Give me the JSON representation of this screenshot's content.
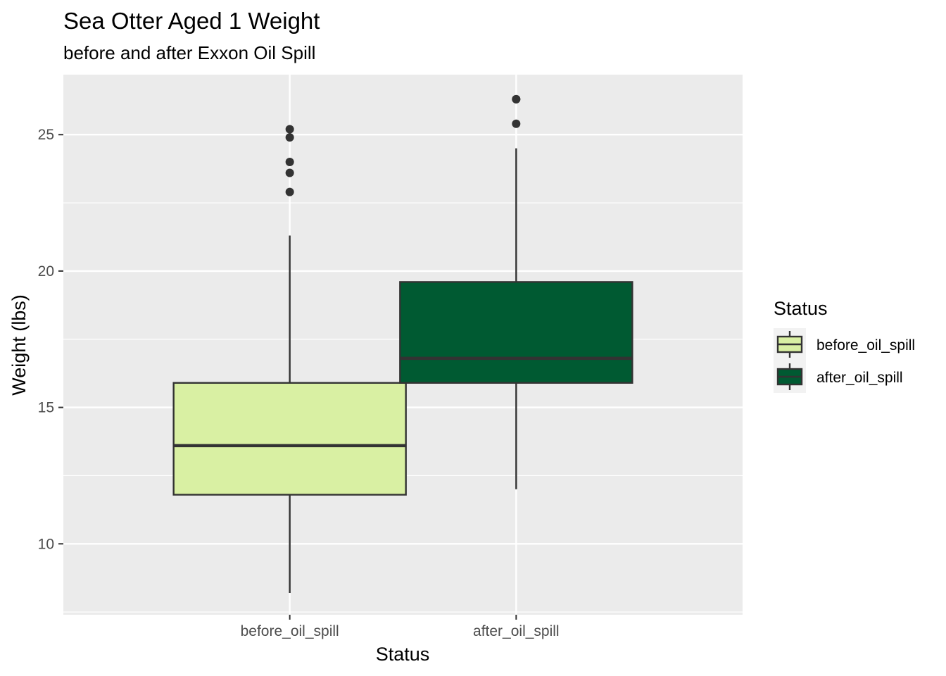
{
  "chart_data": {
    "type": "box",
    "title": "Sea Otter Aged 1 Weight",
    "subtitle": "before and after Exxon Oil Spill",
    "xlabel": "Status",
    "ylabel": "Weight (lbs)",
    "ylim": [
      7.4,
      27.2
    ],
    "yticks": [
      10,
      15,
      20,
      25
    ],
    "ytick_labels": [
      "10",
      "15",
      "20",
      "25"
    ],
    "categories": [
      "before_oil_spill",
      "after_oil_spill"
    ],
    "grid": true,
    "legend": {
      "title": "Status",
      "position": "right",
      "entries": [
        "before_oil_spill",
        "after_oil_spill"
      ]
    },
    "series": [
      {
        "category": "before_oil_spill",
        "color": "#d9f0a3",
        "whisker_low": 8.2,
        "q1": 11.8,
        "median": 13.6,
        "q3": 15.9,
        "whisker_high": 21.3,
        "outliers": [
          22.9,
          23.6,
          24.0,
          24.9,
          25.2
        ]
      },
      {
        "category": "after_oil_spill",
        "color": "#005a32",
        "whisker_low": 12.0,
        "q1": 15.9,
        "median": 16.8,
        "q3": 19.6,
        "whisker_high": 24.5,
        "outliers": [
          25.4,
          26.3,
          26.3
        ]
      }
    ]
  }
}
